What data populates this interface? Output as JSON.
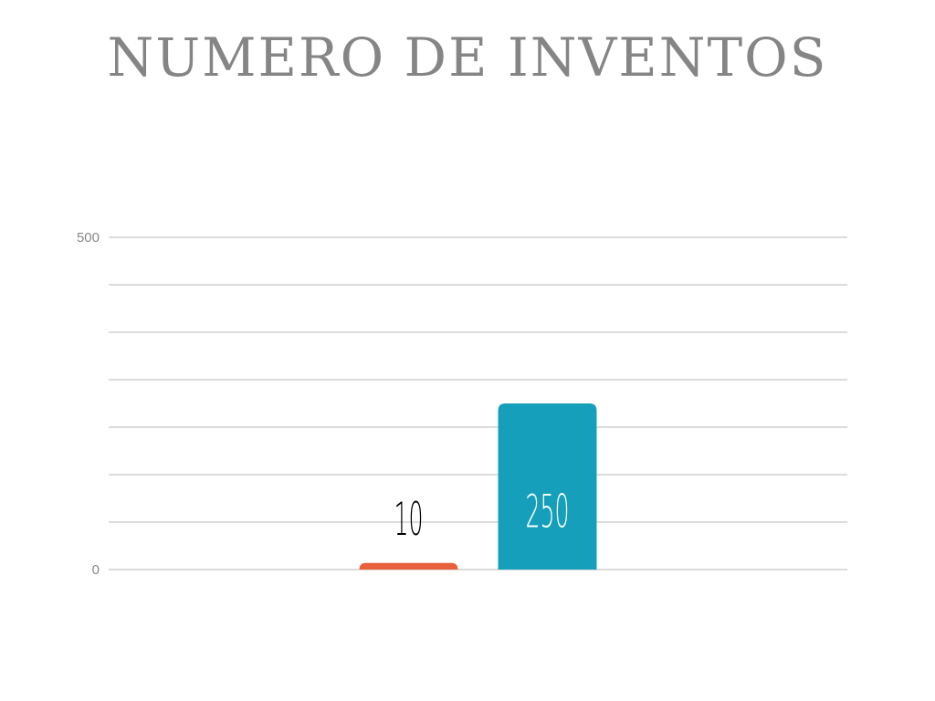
{
  "chart_data": {
    "type": "bar",
    "title": "NUMERO DE INVENTOS",
    "categories": [
      null,
      null
    ],
    "values": [
      10,
      250
    ],
    "colors": [
      "#e8603c",
      "#159fba"
    ],
    "ylim": [
      0,
      500
    ],
    "yticks": [
      0,
      500
    ],
    "grid": true,
    "grid_divisions": 7
  }
}
